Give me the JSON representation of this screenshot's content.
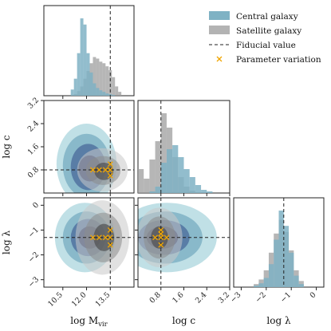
{
  "chart_data": {
    "type": "corner",
    "legend": {
      "placement": "top-right",
      "entries": [
        {
          "label": "Central galaxy",
          "kind": "patch",
          "color": "#7fb2c4"
        },
        {
          "label": "Satellite galaxy",
          "kind": "patch",
          "color": "#b3b3b3"
        },
        {
          "label": "Fiducial value",
          "kind": "dashed-line",
          "color": "#222222"
        },
        {
          "label": "Parameter variation",
          "kind": "x-marker",
          "color": "#f0a500"
        }
      ]
    },
    "parameters": [
      {
        "key": "logM",
        "label_main": "log M",
        "label_sub": "vir",
        "range": [
          9.3,
          15.0
        ],
        "ticks": [
          10.5,
          12.0,
          13.5
        ],
        "tick_labels": [
          "10.5",
          "12.0",
          "13.5"
        ],
        "fiducial": 13.5
      },
      {
        "key": "logc",
        "label_main": "log c",
        "label_sub": "",
        "range": [
          0.0,
          3.2
        ],
        "ticks": [
          0.8,
          1.6,
          2.4,
          3.2
        ],
        "tick_labels": [
          "0.8",
          "1.6",
          "2.4",
          "3.2"
        ],
        "fiducial": 0.8
      },
      {
        "key": "loglam",
        "label_main": "log λ",
        "label_sub": "",
        "range": [
          -3.3,
          0.3
        ],
        "ticks": [
          -3,
          -2,
          -1,
          0
        ],
        "tick_labels": [
          "−3",
          "−2",
          "−1",
          "0"
        ],
        "fiducial": -1.3
      }
    ],
    "histograms": {
      "logM": {
        "bins": [
          11.0,
          11.2,
          11.4,
          11.6,
          11.8,
          12.0,
          12.2,
          12.4,
          12.6,
          12.8,
          13.0,
          13.2,
          13.4,
          13.6,
          13.8,
          14.0,
          14.2
        ],
        "central": [
          0.08,
          0.22,
          0.55,
          1.0,
          0.92,
          0.55,
          0.3,
          0.16,
          0.1,
          0.07,
          0.05,
          0.03,
          0.02,
          0.01,
          0.0,
          0.0
        ],
        "satellite": [
          0.0,
          0.02,
          0.06,
          0.12,
          0.22,
          0.32,
          0.42,
          0.5,
          0.48,
          0.44,
          0.42,
          0.38,
          0.33,
          0.24,
          0.12,
          0.05
        ]
      },
      "logc": {
        "bins": [
          0.0,
          0.2,
          0.4,
          0.6,
          0.8,
          1.0,
          1.2,
          1.4,
          1.6,
          1.8,
          2.0,
          2.2,
          2.4,
          2.6
        ],
        "central": [
          0.0,
          0.0,
          0.02,
          0.08,
          0.38,
          0.55,
          0.6,
          0.45,
          0.3,
          0.2,
          0.1,
          0.04,
          0.02
        ],
        "satellite": [
          0.3,
          0.18,
          0.42,
          0.65,
          1.0,
          0.82,
          0.45,
          0.2,
          0.08,
          0.03,
          0.01,
          0.0,
          0.0
        ]
      },
      "loglam": {
        "bins": [
          -2.5,
          -2.3,
          -2.1,
          -1.9,
          -1.7,
          -1.5,
          -1.3,
          -1.1,
          -0.9,
          -0.7,
          -0.5
        ],
        "central": [
          0.02,
          0.05,
          0.12,
          0.3,
          0.62,
          1.0,
          0.8,
          0.45,
          0.15,
          0.04
        ],
        "satellite": [
          0.04,
          0.1,
          0.22,
          0.45,
          0.7,
          0.88,
          0.72,
          0.48,
          0.22,
          0.08
        ]
      }
    },
    "contours_2d": {
      "logc_vs_logM": {
        "central": [
          {
            "cx": 12.0,
            "cy": 1.0,
            "rx": 1.9,
            "ry": 1.4
          },
          {
            "cx": 12.0,
            "cy": 0.95,
            "rx": 1.5,
            "ry": 1.1
          },
          {
            "cx": 12.1,
            "cy": 0.9,
            "rx": 1.1,
            "ry": 0.8
          },
          {
            "cx": 12.2,
            "cy": 0.85,
            "rx": 0.7,
            "ry": 0.45
          }
        ],
        "satellite": [
          {
            "cx": 13.0,
            "cy": 0.8,
            "rx": 1.6,
            "ry": 0.75
          },
          {
            "cx": 13.05,
            "cy": 0.78,
            "rx": 1.1,
            "ry": 0.5
          },
          {
            "cx": 13.1,
            "cy": 0.75,
            "rx": 0.6,
            "ry": 0.3
          }
        ]
      },
      "loglam_vs_logM": {
        "central": [
          {
            "cx": 11.9,
            "cy": -1.3,
            "rx": 1.9,
            "ry": 1.4
          },
          {
            "cx": 12.0,
            "cy": -1.3,
            "rx": 1.5,
            "ry": 1.05
          },
          {
            "cx": 12.1,
            "cy": -1.3,
            "rx": 1.1,
            "ry": 0.75
          },
          {
            "cx": 12.2,
            "cy": -1.3,
            "rx": 0.7,
            "ry": 0.45
          }
        ],
        "satellite": [
          {
            "cx": 13.0,
            "cy": -1.3,
            "rx": 1.7,
            "ry": 1.5
          },
          {
            "cx": 13.05,
            "cy": -1.3,
            "rx": 1.2,
            "ry": 1.0
          },
          {
            "cx": 13.1,
            "cy": -1.3,
            "rx": 0.65,
            "ry": 0.55
          }
        ]
      },
      "loglam_vs_logc": {
        "central": [
          {
            "cx": 1.0,
            "cy": -1.3,
            "rx": 1.75,
            "ry": 1.4
          },
          {
            "cx": 0.95,
            "cy": -1.3,
            "rx": 1.3,
            "ry": 1.05
          },
          {
            "cx": 0.9,
            "cy": -1.3,
            "rx": 0.9,
            "ry": 0.7
          },
          {
            "cx": 0.85,
            "cy": -1.3,
            "rx": 0.55,
            "ry": 0.45
          }
        ],
        "satellite": [
          {
            "cx": 0.75,
            "cy": -1.3,
            "rx": 0.8,
            "ry": 1.2
          },
          {
            "cx": 0.75,
            "cy": -1.3,
            "rx": 0.55,
            "ry": 0.85
          },
          {
            "cx": 0.75,
            "cy": -1.3,
            "rx": 0.3,
            "ry": 0.45
          }
        ]
      }
    },
    "parameter_variations": {
      "logc_vs_logM": [
        [
          12.4,
          0.8
        ],
        [
          12.8,
          0.8
        ],
        [
          13.2,
          0.8
        ],
        [
          13.5,
          0.8
        ],
        [
          13.5,
          0.6
        ],
        [
          13.5,
          1.0
        ]
      ],
      "loglam_vs_logM": [
        [
          12.4,
          -1.3
        ],
        [
          12.8,
          -1.3
        ],
        [
          13.2,
          -1.3
        ],
        [
          13.5,
          -1.3
        ],
        [
          13.5,
          -1.0
        ],
        [
          13.5,
          -1.6
        ]
      ],
      "loglam_vs_logc": [
        [
          0.6,
          -1.3
        ],
        [
          0.8,
          -1.3
        ],
        [
          1.0,
          -1.3
        ],
        [
          0.8,
          -1.0
        ],
        [
          0.8,
          -1.15
        ],
        [
          0.8,
          -1.6
        ]
      ]
    }
  }
}
